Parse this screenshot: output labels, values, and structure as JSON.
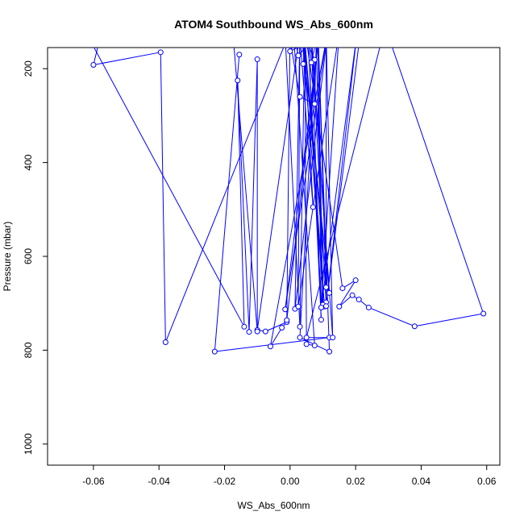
{
  "chart_data": {
    "type": "line",
    "title": "ATOM4 Southbound WS_Abs_600nm",
    "xlabel": "WS_Abs_600nm",
    "ylabel": "Pressure (mbar)",
    "xlim": [
      -0.074,
      0.064
    ],
    "ylim": [
      1045,
      155
    ],
    "y_reversed": true,
    "x_ticks": [
      -0.06,
      -0.04,
      -0.02,
      0.0,
      0.02,
      0.04,
      0.06
    ],
    "x_tick_labels": [
      "-0.06",
      "-0.04",
      "-0.02",
      "0.00",
      "0.02",
      "0.04",
      "0.06"
    ],
    "y_ticks": [
      200,
      400,
      600,
      800,
      1000
    ],
    "y_tick_labels": [
      "200",
      "400",
      "600",
      "800",
      "1000"
    ],
    "grid": false,
    "legend": "none",
    "colors": {
      "series": "#0000ff",
      "axis": "#000000"
    },
    "series": [
      {
        "type": "line",
        "points": [
          [
            -0.0155,
            170
          ],
          [
            -0.023,
            803
          ],
          [
            0.012,
            773
          ],
          [
            0.005,
            773
          ],
          [
            0.029,
            110
          ],
          [
            0.059,
            722
          ],
          [
            0.038,
            749
          ],
          [
            0.024,
            709
          ],
          [
            0.021,
            692
          ],
          [
            0.019,
            683
          ],
          [
            0.015,
            707
          ],
          [
            0.02,
            651
          ],
          [
            0.016,
            668
          ],
          [
            0.005,
            140
          ],
          [
            0.0075,
            181
          ],
          [
            0.003,
            773
          ],
          [
            0.012,
            803
          ],
          [
            0.0085,
            120
          ],
          [
            0.0095,
            709
          ],
          [
            0.0055,
            130
          ],
          [
            0.0095,
            735
          ],
          [
            0.0065,
            140
          ],
          [
            0.013,
            773
          ],
          [
            0.011,
            120
          ],
          [
            0.011,
            698
          ],
          [
            0.0065,
            130
          ],
          [
            0.012,
            678
          ],
          [
            0.0035,
            120
          ],
          [
            0.0105,
            707
          ],
          [
            0.0045,
            140
          ],
          [
            0.011,
            666
          ],
          [
            0.0085,
            120
          ],
          [
            0.01,
            703
          ],
          [
            0.008,
            150
          ],
          [
            0.0065,
            140
          ],
          [
            0.0025,
            172
          ],
          [
            0.001,
            120
          ],
          [
            0.0075,
            790
          ],
          [
            0.005,
            787
          ],
          [
            0.0045,
            120
          ],
          [
            0.003,
            750
          ],
          [
            -0.0015,
            130
          ],
          [
            -0.0005,
            120
          ],
          [
            0.003,
            260
          ],
          [
            0.0075,
            275
          ],
          [
            0.008,
            140
          ],
          [
            0.0065,
            187
          ],
          [
            0.0055,
            120
          ],
          [
            0.004,
            190
          ],
          [
            0.0045,
            150
          ],
          [
            0.007,
            495
          ],
          [
            0.003,
            130
          ],
          [
            0.0,
            163
          ],
          [
            0.0115,
            120
          ],
          [
            -0.006,
            792
          ],
          [
            -0.0025,
            752
          ],
          [
            -0.001,
            740
          ],
          [
            -0.0075,
            760
          ],
          [
            -0.01,
            757
          ],
          [
            0.0025,
            150
          ],
          [
            0.0035,
            120
          ],
          [
            -0.0005,
            120
          ],
          [
            -0.0115,
            130
          ],
          [
            -0.0175,
            120
          ],
          [
            -0.01,
            760
          ],
          [
            -0.01,
            180
          ],
          [
            -0.0125,
            761
          ],
          [
            -0.016,
            225
          ],
          [
            -0.014,
            750
          ],
          [
            -0.0625,
            120
          ],
          [
            -0.0575,
            120
          ],
          [
            -0.06,
            192
          ],
          [
            -0.0395,
            165
          ],
          [
            -0.038,
            783
          ],
          [
            0.0,
            120
          ],
          [
            -0.001,
            736
          ],
          [
            0.009,
            120
          ],
          [
            -0.0015,
            713
          ],
          [
            0.0115,
            120
          ],
          [
            0.0015,
            712
          ],
          [
            0.003,
            120
          ],
          [
            0.0025,
            707
          ],
          [
            0.015,
            120
          ],
          [
            0.0095,
            709
          ],
          [
            0.0205,
            120
          ],
          [
            0.011,
            706
          ],
          [
            0.0215,
            120
          ]
        ]
      }
    ]
  }
}
